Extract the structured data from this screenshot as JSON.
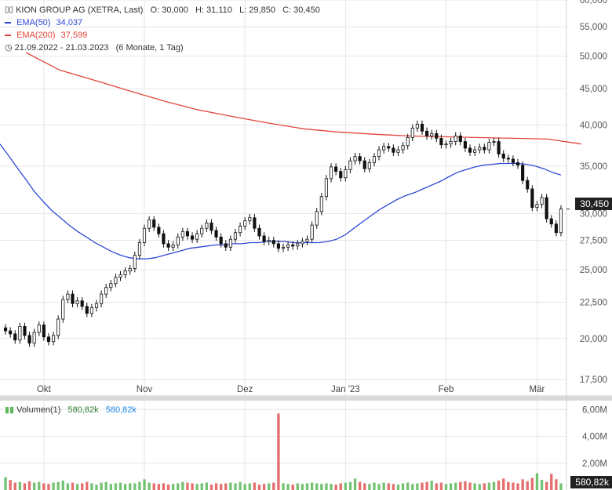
{
  "header": {
    "symbol_line": "KION GROUP AG (XETRA, Last)",
    "ohlc": "O: 30,000   H: 31,110   L: 29,850   C: 30,450",
    "ema50_label": "EMA(50)",
    "ema50_value": "34,037",
    "ema200_label": "EMA(200)",
    "ema200_value": "37,599",
    "range_label": "21.09.2022 - 21.03.2023",
    "range_span": "(6 Monate, 1 Tag)",
    "volume_label": "Volumen(1)",
    "volume_value_1": "580,82k",
    "volume_value_2": "580,82k"
  },
  "colors": {
    "ema50": "#2f47d6",
    "ema200": "#e2453a",
    "candle": "#111111",
    "volume_up": "#5cb85c",
    "volume_down": "#e05555",
    "grid": "#e6e6e6"
  },
  "price_tag": "30,450",
  "volume_tag": "580,82k",
  "chart_data": {
    "type": "candlestick",
    "title": "KION GROUP AG (XETRA, Last)",
    "x_ticks": [
      "Okt",
      "Nov",
      "Dez",
      "Jan '23",
      "Feb",
      "Mär"
    ],
    "x_tick_positions": [
      8,
      29,
      50,
      71,
      92,
      111
    ],
    "y_ticks": [
      "17,500",
      "20,000",
      "22,500",
      "25,000",
      "27,500",
      "30,000",
      "35,000",
      "40,000",
      "45,000",
      "50,000",
      "55,000",
      "60,000"
    ],
    "y_scale": "log",
    "ylim": [
      16.6,
      60.0
    ],
    "volume_ticks": [
      "2,00M",
      "4,00M",
      "6,00M"
    ],
    "volume_ylim": [
      0,
      6.6
    ],
    "grid": true,
    "close": [
      20.5,
      20.3,
      19.9,
      20.8,
      20.2,
      19.7,
      20.4,
      20.9,
      20.1,
      19.8,
      20.2,
      21.3,
      22.7,
      23.1,
      22.4,
      22.6,
      22.2,
      21.7,
      22.1,
      22.4,
      23.1,
      23.6,
      23.9,
      24.4,
      24.6,
      24.9,
      25.1,
      26.2,
      27.3,
      28.6,
      29.4,
      28.7,
      28.1,
      27.2,
      26.9,
      27.1,
      27.8,
      28.3,
      27.9,
      27.6,
      28.1,
      28.6,
      29.1,
      28.4,
      27.8,
      27.2,
      26.9,
      27.6,
      28.2,
      28.8,
      29.3,
      29.6,
      28.6,
      27.9,
      27.4,
      27.5,
      27.2,
      26.8,
      26.9,
      27.1,
      27.0,
      27.2,
      27.4,
      27.6,
      28.9,
      30.2,
      31.7,
      33.6,
      34.9,
      34.4,
      33.7,
      34.6,
      35.6,
      36.1,
      35.6,
      34.7,
      35.4,
      36.1,
      36.9,
      37.3,
      37.1,
      36.6,
      36.9,
      37.4,
      38.4,
      39.6,
      40.1,
      39.2,
      38.6,
      38.9,
      38.3,
      37.5,
      37.6,
      37.9,
      38.6,
      37.9,
      37.1,
      36.6,
      36.9,
      37.2,
      36.9,
      37.8,
      37.9,
      36.4,
      35.9,
      35.8,
      35.4,
      35.1,
      33.4,
      32.5,
      30.6,
      30.9,
      31.6,
      29.5,
      29.0,
      28.2,
      30.45
    ],
    "ema50": [
      37.6,
      36.2,
      34.8,
      33.5,
      32.2,
      31.2,
      30.3,
      29.6,
      28.9,
      28.3,
      27.8,
      27.3,
      26.9,
      26.5,
      26.2,
      26.0,
      25.9,
      25.9,
      26.0,
      26.2,
      26.4,
      26.6,
      26.8,
      26.9,
      27.0,
      27.1,
      27.1,
      27.2,
      27.2,
      27.3,
      27.3,
      27.4,
      27.4,
      27.4,
      27.3,
      27.3,
      27.3,
      27.3,
      27.4,
      27.6,
      28.0,
      28.6,
      29.2,
      29.8,
      30.4,
      30.9,
      31.4,
      31.8,
      32.1,
      32.5,
      32.9,
      33.3,
      33.8,
      34.3,
      34.6,
      34.9,
      35.1,
      35.2,
      35.3,
      35.3,
      35.3,
      35.2,
      35.0,
      34.7,
      34.3,
      34.0
    ],
    "ema50_start_index": 0,
    "ema200": [
      50.6,
      47.8,
      46.1,
      44.6,
      43.2,
      42.0,
      41.0,
      40.2,
      39.5,
      39.1,
      38.8,
      38.6,
      38.5,
      38.4,
      38.3,
      38.2,
      37.6
    ],
    "volume": [
      0.95,
      0.75,
      0.55,
      0.6,
      0.5,
      0.65,
      0.55,
      0.6,
      0.5,
      0.45,
      0.55,
      0.6,
      0.7,
      0.5,
      0.55,
      0.45,
      0.5,
      0.6,
      0.5,
      0.4,
      0.55,
      0.6,
      0.45,
      0.5,
      0.55,
      0.45,
      0.5,
      0.5,
      0.6,
      0.8,
      0.55,
      0.5,
      0.45,
      0.5,
      0.4,
      0.45,
      0.5,
      0.6,
      0.55,
      0.5,
      0.45,
      0.5,
      0.55,
      0.4,
      0.5,
      0.45,
      0.5,
      0.55,
      0.5,
      0.6,
      0.45,
      0.5,
      0.55,
      0.4,
      0.45,
      0.5,
      0.55,
      5.7,
      0.5,
      0.45,
      0.4,
      0.5,
      0.45,
      0.5,
      0.55,
      0.5,
      0.45,
      0.5,
      0.45,
      0.4,
      0.5,
      0.55,
      0.6,
      0.85,
      0.6,
      0.5,
      0.45,
      0.55,
      0.45,
      0.55,
      0.5,
      0.45,
      0.4,
      0.5,
      0.55,
      0.45,
      0.5,
      0.55,
      0.6,
      0.7,
      0.5,
      0.55,
      0.45,
      0.5,
      0.55,
      0.6,
      0.65,
      0.55,
      0.5,
      0.45,
      0.5,
      0.55,
      0.6,
      0.7,
      0.85,
      0.6,
      0.55,
      0.5,
      0.8,
      0.65,
      0.9,
      1.25,
      0.75,
      0.6,
      1.2,
      0.8,
      0.5
    ]
  }
}
